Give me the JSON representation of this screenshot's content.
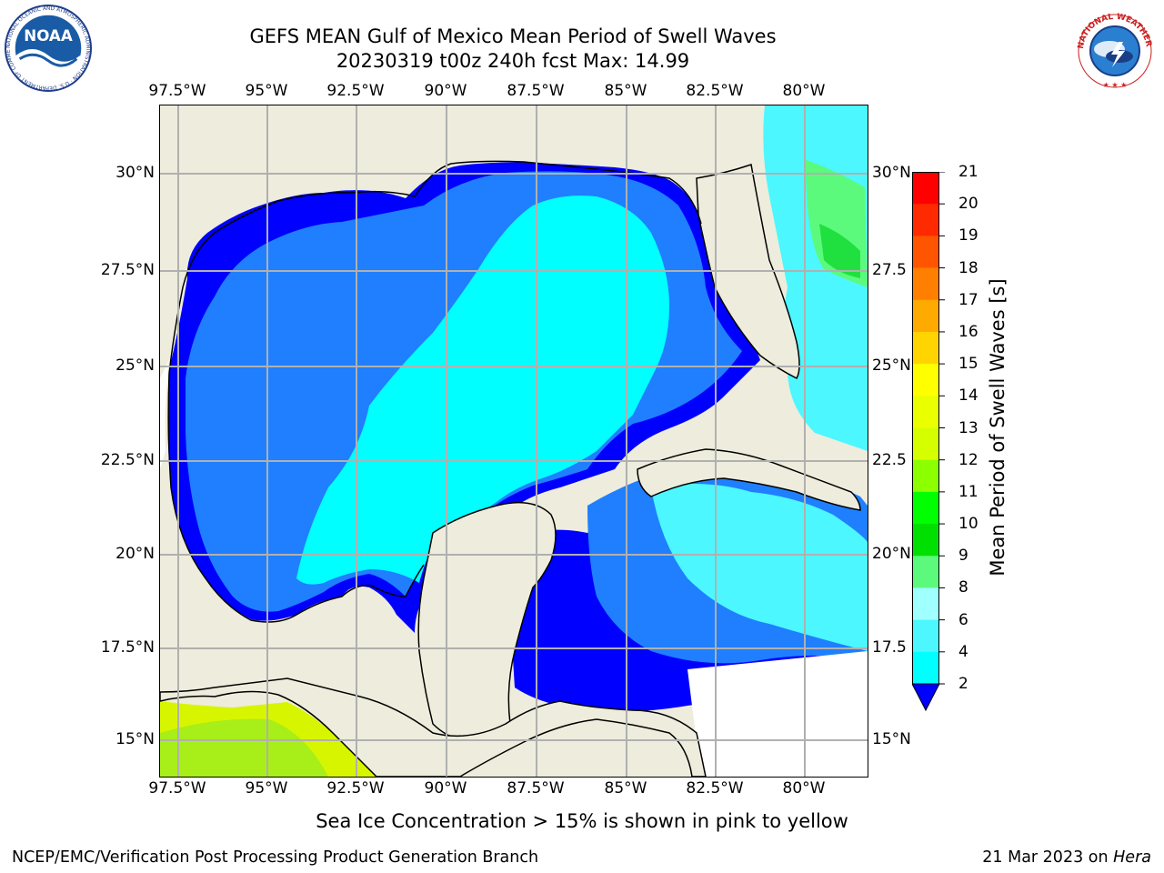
{
  "title": {
    "line1": "GEFS MEAN Gulf of Mexico Mean Period of Swell Waves",
    "line2": "20230319 t00z 240h fcst   Max: 14.99"
  },
  "logos": {
    "left": {
      "icon": "noaa-logo",
      "text": "NOAA",
      "ring_text": "NATIONAL OCEANIC AND ATMOSPHERIC ADMINISTRATION · U.S. DEPARTMENT OF COMMERCE"
    },
    "right": {
      "icon": "nws-logo",
      "ring_text": "NATIONAL WEATHER SERVICE"
    }
  },
  "map": {
    "lon_ticks_top": [
      "97.5°W",
      "95°W",
      "92.5°W",
      "90°W",
      "87.5°W",
      "85°W",
      "82.5°W",
      "80°W"
    ],
    "lon_ticks_bottom": [
      "97.5°W",
      "95°W",
      "92.5°W",
      "90°W",
      "87.5°W",
      "85°W",
      "82.5°W",
      "80°W"
    ],
    "lat_ticks_left": [
      "30°N",
      "27.5°N",
      "25°N",
      "22.5°N",
      "20°N",
      "17.5°N",
      "15°N"
    ],
    "lat_ticks_right": [
      "30°N",
      "27.5",
      "25°N",
      "22.5",
      "20°N",
      "17.5",
      "15°N"
    ],
    "land_color": "#eeecdc",
    "grid_color": "#b0b0b0"
  },
  "colorbar": {
    "label": "Mean Period of Swell Waves [s]",
    "ticks": [
      "21",
      "20",
      "19",
      "18",
      "17",
      "16",
      "15",
      "14",
      "13",
      "12",
      "11",
      "10",
      "9",
      "8",
      "6",
      "4",
      "2"
    ],
    "colors_top_to_bottom": [
      "#ff0000",
      "#ff2a00",
      "#ff5500",
      "#ff8000",
      "#ffaa00",
      "#ffd400",
      "#ffff00",
      "#eaff00",
      "#d5ff00",
      "#8cff00",
      "#00ff00",
      "#00e000",
      "#5cfa7c",
      "#a0ffff",
      "#4cf7ff",
      "#00ffff",
      "#0080ff",
      "#0000ff"
    ],
    "extend": "min"
  },
  "footnote": "Sea Ice Concentration > 15% is shown in pink to yellow",
  "credit_left": "NCEP/EMC/Verification Post Processing Product Generation Branch",
  "credit_right_date": "21 Mar 2023 on ",
  "credit_right_host": "Hera"
}
